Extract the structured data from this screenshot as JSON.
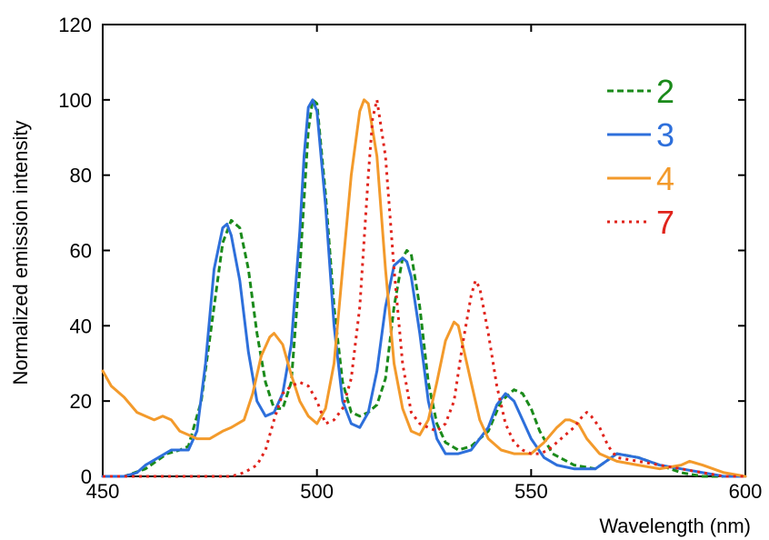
{
  "chart_data": {
    "type": "line",
    "title": "",
    "xlabel": "Wavelength (nm)",
    "ylabel": "Normalized emission intensity",
    "xlim": [
      450,
      600
    ],
    "ylim": [
      0,
      120
    ],
    "xticks": [
      450,
      500,
      550,
      600
    ],
    "yticks": [
      0,
      20,
      40,
      60,
      80,
      100,
      120
    ],
    "grid": false,
    "legend_position": "top-right",
    "series": [
      {
        "name": "2",
        "color": "#1a8a1a",
        "dash": "dashed",
        "x": [
          450,
          455,
          460,
          465,
          468,
          470,
          473,
          476,
          478,
          480,
          482,
          484,
          486,
          488,
          490,
          492,
          494,
          496,
          498,
          499,
          500,
          502,
          504,
          506,
          508,
          510,
          512,
          514,
          516,
          518,
          520,
          521,
          522,
          524,
          526,
          528,
          530,
          533,
          536,
          540,
          543,
          546,
          548,
          550,
          552,
          555,
          560,
          565,
          570,
          575,
          580,
          585,
          590,
          595,
          600
        ],
        "y": [
          0,
          0,
          2,
          6,
          7,
          8,
          20,
          45,
          62,
          68,
          66,
          55,
          38,
          25,
          18,
          18,
          25,
          55,
          92,
          100,
          99,
          75,
          45,
          25,
          17,
          16,
          17,
          19,
          26,
          45,
          58,
          60,
          59,
          45,
          25,
          14,
          9,
          7,
          8,
          12,
          20,
          23,
          22,
          18,
          12,
          6,
          3,
          2,
          6,
          5,
          3,
          1,
          0,
          0,
          0
        ]
      },
      {
        "name": "3",
        "color": "#2d6fdb",
        "dash": "solid",
        "x": [
          450,
          455,
          458,
          460,
          463,
          466,
          468,
          470,
          472,
          474,
          476,
          478,
          479,
          480,
          482,
          484,
          486,
          488,
          490,
          492,
          494,
          496,
          497,
          498,
          499,
          500,
          502,
          504,
          506,
          508,
          510,
          512,
          514,
          516,
          518,
          520,
          521,
          522,
          524,
          526,
          528,
          530,
          533,
          536,
          540,
          542,
          544,
          546,
          548,
          550,
          553,
          556,
          560,
          565,
          570,
          575,
          580,
          585,
          590,
          595,
          600
        ],
        "y": [
          0,
          0,
          1,
          3,
          5,
          7,
          7,
          7,
          12,
          30,
          55,
          66,
          67,
          64,
          52,
          33,
          20,
          16,
          17,
          22,
          35,
          65,
          85,
          98,
          100,
          97,
          72,
          40,
          20,
          14,
          13,
          17,
          28,
          45,
          56,
          58,
          57,
          53,
          38,
          20,
          10,
          6,
          6,
          7,
          13,
          19,
          22,
          20,
          15,
          10,
          5,
          3,
          2,
          2,
          6,
          5,
          3,
          2,
          1,
          0,
          0
        ]
      },
      {
        "name": "4",
        "color": "#f39a2b",
        "dash": "solid",
        "x": [
          450,
          452,
          455,
          458,
          460,
          462,
          464,
          466,
          468,
          470,
          472,
          475,
          478,
          480,
          483,
          485,
          487,
          489,
          490,
          492,
          494,
          496,
          498,
          500,
          502,
          504,
          506,
          508,
          510,
          511,
          512,
          514,
          516,
          518,
          520,
          522,
          524,
          526,
          528,
          530,
          532,
          533,
          534,
          536,
          538,
          540,
          543,
          546,
          550,
          553,
          556,
          558,
          559,
          561,
          563,
          566,
          570,
          575,
          580,
          585,
          587,
          590,
          595,
          600
        ],
        "y": [
          28,
          24,
          21,
          17,
          16,
          15,
          16,
          15,
          12,
          11,
          10,
          10,
          12,
          13,
          15,
          22,
          32,
          37,
          38,
          35,
          27,
          20,
          16,
          14,
          18,
          30,
          55,
          80,
          97,
          100,
          99,
          85,
          55,
          30,
          18,
          12,
          11,
          15,
          25,
          36,
          41,
          40,
          35,
          25,
          15,
          10,
          7,
          6,
          6,
          9,
          13,
          15,
          15,
          14,
          10,
          6,
          4,
          3,
          2,
          3,
          4,
          3,
          1,
          0
        ]
      },
      {
        "name": "7",
        "color": "#e0231b",
        "dash": "dotted",
        "x": [
          450,
          455,
          460,
          465,
          470,
          475,
          480,
          483,
          486,
          488,
          490,
          492,
          494,
          496,
          498,
          500,
          502,
          504,
          506,
          508,
          510,
          512,
          513,
          514,
          516,
          518,
          520,
          522,
          524,
          526,
          528,
          530,
          532,
          534,
          536,
          537,
          538,
          540,
          542,
          544,
          546,
          548,
          550,
          552,
          554,
          556,
          558,
          560,
          562,
          563,
          564,
          566,
          568,
          570,
          575,
          580,
          585,
          590,
          595,
          600
        ],
        "y": [
          0,
          0,
          0,
          0,
          0,
          0,
          0,
          1,
          3,
          7,
          15,
          22,
          24,
          25,
          24,
          20,
          14,
          15,
          18,
          26,
          45,
          80,
          95,
          100,
          85,
          55,
          30,
          17,
          14,
          13,
          12,
          14,
          20,
          35,
          48,
          52,
          50,
          38,
          24,
          14,
          9,
          7,
          6,
          6,
          7,
          9,
          11,
          13,
          16,
          17,
          16,
          13,
          8,
          5,
          4,
          3,
          2,
          1,
          0,
          0
        ]
      }
    ]
  }
}
